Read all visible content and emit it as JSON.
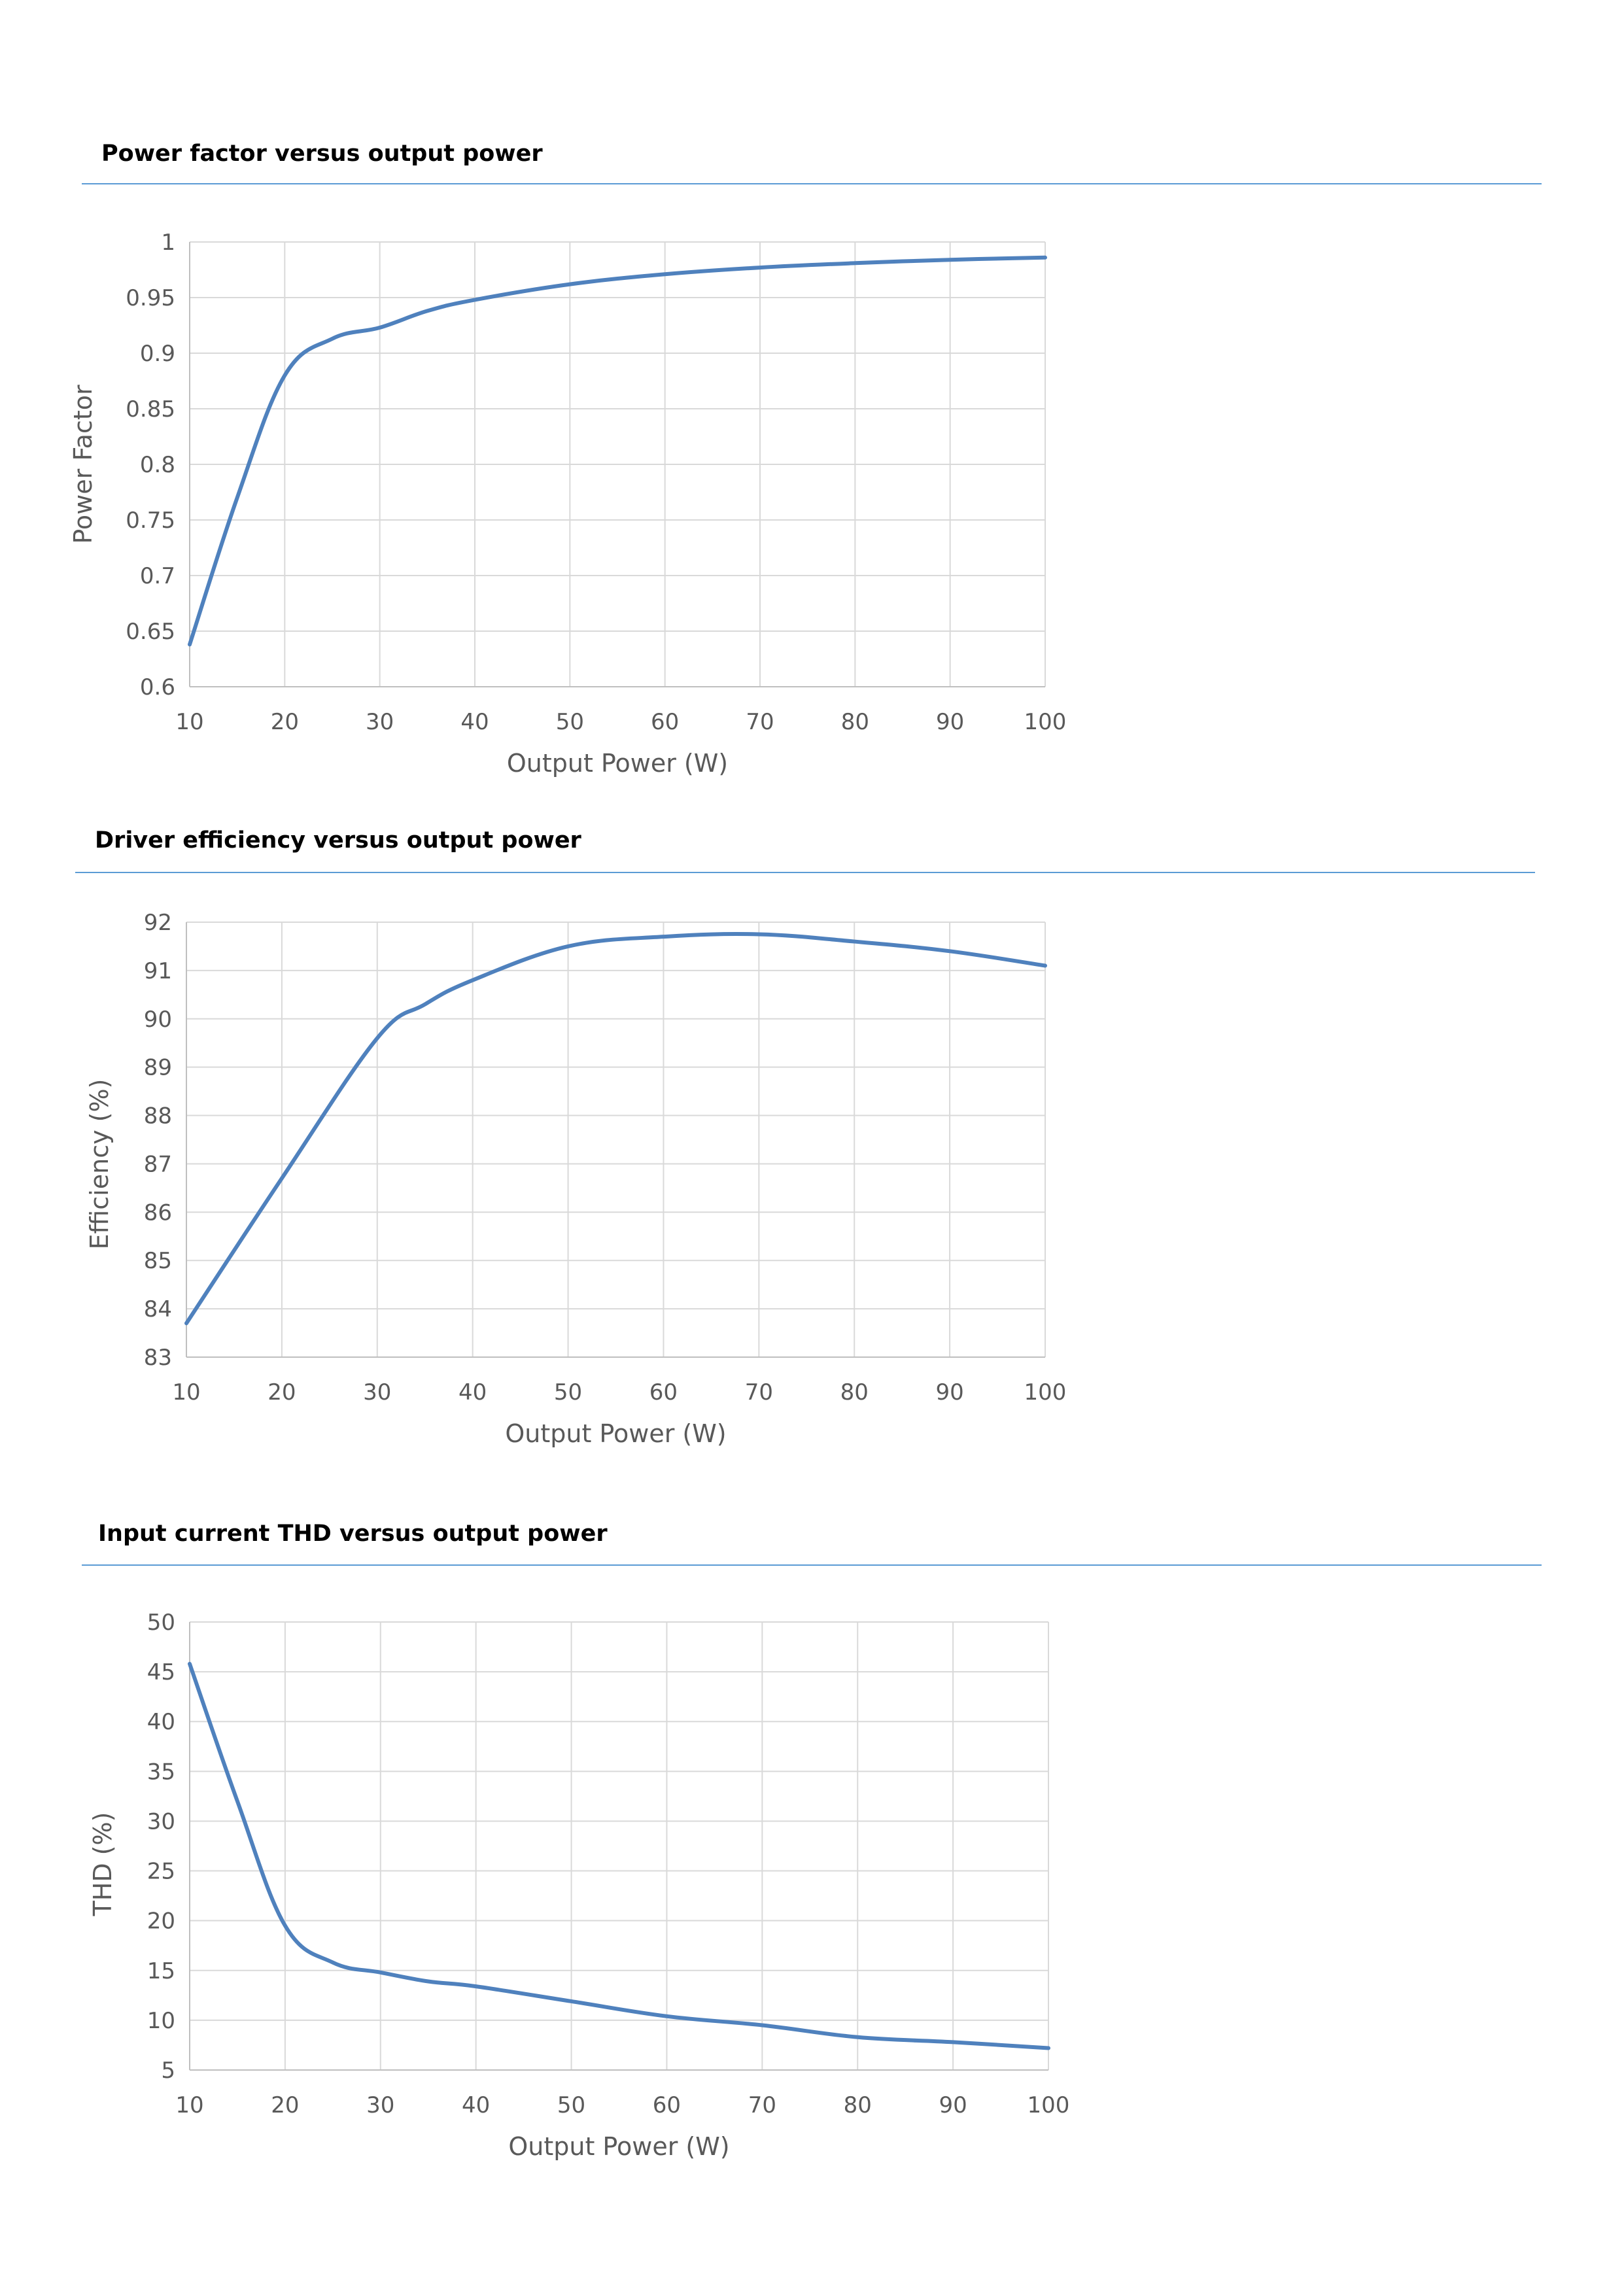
{
  "sections": [
    {
      "title": "Power factor versus output power"
    },
    {
      "title": "Driver efficiency versus output power"
    },
    {
      "title": "Input current THD versus output power"
    }
  ],
  "chart_data": [
    {
      "type": "line",
      "xlabel": "Output Power (W)",
      "ylabel": "Power Factor",
      "xlim": [
        10,
        100
      ],
      "ylim": [
        0.6,
        1
      ],
      "xticks": [
        10,
        20,
        30,
        40,
        50,
        60,
        70,
        80,
        90,
        100
      ],
      "yticks": [
        0.6,
        0.65,
        0.7,
        0.75,
        0.8,
        0.85,
        0.9,
        0.95,
        1
      ],
      "ytick_labels": [
        "0.6",
        "0.65",
        "0.7",
        "0.75",
        "0.8",
        "0.85",
        "0.9",
        "0.95",
        "1"
      ],
      "grid": true,
      "line_color": "#4f81bd",
      "x": [
        10,
        15,
        20,
        25,
        30,
        35,
        40,
        50,
        60,
        70,
        80,
        90,
        100
      ],
      "y": [
        0.638,
        0.77,
        0.88,
        0.913,
        0.923,
        0.938,
        0.948,
        0.962,
        0.971,
        0.977,
        0.981,
        0.984,
        0.986
      ]
    },
    {
      "type": "line",
      "xlabel": "Output Power (W)",
      "ylabel": "Efficiency (%)",
      "xlim": [
        10,
        100
      ],
      "ylim": [
        83,
        92
      ],
      "xticks": [
        10,
        20,
        30,
        40,
        50,
        60,
        70,
        80,
        90,
        100
      ],
      "yticks": [
        83,
        84,
        85,
        86,
        87,
        88,
        89,
        90,
        91,
        92
      ],
      "ytick_labels": [
        "83",
        "84",
        "85",
        "86",
        "87",
        "88",
        "89",
        "90",
        "91",
        "92"
      ],
      "grid": true,
      "line_color": "#4f81bd",
      "x": [
        10,
        20,
        30,
        35,
        40,
        50,
        60,
        70,
        80,
        90,
        100
      ],
      "y": [
        83.7,
        86.7,
        89.6,
        90.3,
        90.8,
        91.5,
        91.7,
        91.75,
        91.6,
        91.4,
        91.1
      ]
    },
    {
      "type": "line",
      "xlabel": "Output Power (W)",
      "ylabel": "THD (%)",
      "xlim": [
        10,
        100
      ],
      "ylim": [
        5,
        50
      ],
      "xticks": [
        10,
        20,
        30,
        40,
        50,
        60,
        70,
        80,
        90,
        100
      ],
      "yticks": [
        5,
        10,
        15,
        20,
        25,
        30,
        35,
        40,
        45,
        50
      ],
      "ytick_labels": [
        "5",
        "10",
        "15",
        "20",
        "25",
        "30",
        "35",
        "40",
        "45",
        "50"
      ],
      "grid": true,
      "line_color": "#4f81bd",
      "x": [
        10,
        15,
        20,
        25,
        30,
        35,
        40,
        50,
        60,
        70,
        80,
        90,
        100
      ],
      "y": [
        45.8,
        32,
        19.5,
        15.8,
        14.8,
        13.9,
        13.4,
        11.9,
        10.4,
        9.5,
        8.3,
        7.8,
        7.2
      ]
    }
  ]
}
